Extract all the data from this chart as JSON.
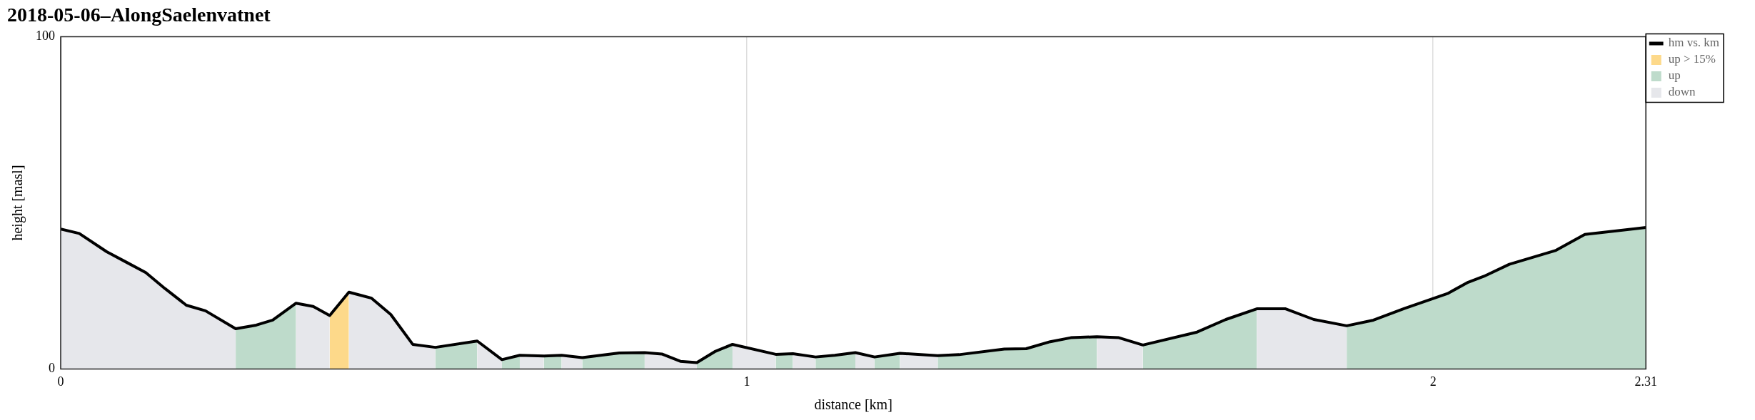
{
  "chart_data": {
    "type": "area",
    "title": "2018-05-06–AlongSaelenvatnet",
    "xlabel": "distance [km]",
    "ylabel": "height [masl]",
    "xlim": [
      0,
      2.31
    ],
    "xticks": [
      0,
      1,
      2,
      2.31
    ],
    "ylim": [
      0,
      100
    ],
    "yticks": [
      0,
      100
    ],
    "grid": "x",
    "legend": "top right",
    "series": [
      {
        "name": "hm vs. km",
        "type": "line",
        "color": "#000000",
        "x": [
          0,
          0.027,
          0.067,
          0.096,
          0.124,
          0.152,
          0.183,
          0.211,
          0.255,
          0.285,
          0.309,
          0.343,
          0.368,
          0.392,
          0.42,
          0.453,
          0.481,
          0.513,
          0.546,
          0.607,
          0.643,
          0.669,
          0.704,
          0.73,
          0.76,
          0.814,
          0.851,
          0.876,
          0.903,
          0.927,
          0.953,
          0.979,
          1.042,
          1.067,
          1.1,
          1.128,
          1.158,
          1.186,
          1.223,
          1.278,
          1.309,
          1.375,
          1.407,
          1.442,
          1.472,
          1.51,
          1.542,
          1.577,
          1.656,
          1.698,
          1.743,
          1.785,
          1.826,
          1.874,
          1.913,
          1.958,
          2.021,
          2.051,
          2.074,
          2.111,
          2.179,
          2.221,
          2.31
        ],
        "values": [
          42.1,
          40.8,
          35.3,
          32.1,
          29.0,
          24.2,
          19.2,
          17.5,
          12.1,
          13.2,
          14.7,
          19.8,
          18.8,
          16.1,
          23.1,
          21.3,
          16.4,
          7.4,
          6.5,
          8.4,
          2.8,
          4.1,
          3.9,
          4.1,
          3.4,
          4.8,
          4.9,
          4.5,
          2.3,
          1.9,
          5.2,
          7.4,
          4.4,
          4.6,
          3.6,
          4.1,
          4.9,
          3.6,
          4.7,
          4.0,
          4.3,
          6.0,
          6.1,
          8.2,
          9.4,
          9.7,
          9.4,
          7.2,
          11.1,
          14.9,
          18.1,
          18.1,
          14.9,
          13.0,
          14.7,
          18.2,
          22.7,
          26.1,
          27.9,
          31.5,
          35.7,
          40.5,
          42.6
        ]
      },
      {
        "name": "up > 15%",
        "type": "area",
        "color": "#fdd98a",
        "x": [
          0.392,
          0.42
        ],
        "values": [
          16.1,
          23.1
        ]
      },
      {
        "name": "up",
        "type": "area",
        "color": "#bedbcb",
        "x": [
          0.255,
          0.285,
          0.309,
          0.343,
          0.4,
          0.546,
          0.607,
          0.62,
          0.643,
          0.669,
          0.68,
          0.704,
          0.73,
          0.74,
          0.76,
          0.814,
          0.851,
          0.9,
          0.927,
          0.953,
          0.979,
          1.0,
          1.042,
          1.067,
          1.08,
          1.1,
          1.128,
          1.158,
          1.17,
          1.186,
          1.223,
          1.25,
          1.278,
          1.309,
          1.375,
          1.407,
          1.442,
          1.472,
          1.51,
          1.54,
          1.577,
          1.656,
          1.698,
          1.743,
          1.8,
          1.874,
          1.913,
          1.958,
          2.021,
          2.051,
          2.074,
          2.111,
          2.179,
          2.221,
          2.31
        ],
        "values": [
          12.1,
          13.2,
          14.7,
          19.8,
          null,
          6.5,
          8.4,
          null,
          2.8,
          4.1,
          null,
          3.9,
          4.1,
          null,
          3.4,
          4.8,
          4.9,
          null,
          1.9,
          5.2,
          7.4,
          null,
          4.4,
          4.6,
          null,
          3.6,
          4.1,
          4.9,
          null,
          3.6,
          4.7,
          null,
          4.0,
          4.3,
          6.0,
          6.1,
          8.2,
          9.4,
          9.7,
          null,
          7.2,
          11.1,
          14.9,
          18.1,
          null,
          13.0,
          14.7,
          18.2,
          22.7,
          26.1,
          27.9,
          31.5,
          35.7,
          40.5,
          42.6
        ]
      },
      {
        "name": "down",
        "type": "area",
        "color": "#e6e7eb",
        "x": [
          0,
          0.027,
          0.067,
          0.096,
          0.124,
          0.152,
          0.183,
          0.211,
          0.255,
          0.3,
          0.343,
          0.368,
          0.392,
          0.406,
          0.42,
          0.453,
          0.481,
          0.513,
          0.546,
          0.58,
          0.607,
          0.643,
          0.656,
          0.669,
          0.704,
          0.717,
          0.73,
          0.76,
          0.8,
          0.851,
          0.876,
          0.903,
          0.927,
          0.95,
          0.979,
          1.042,
          1.055,
          1.067,
          1.1,
          1.13,
          1.158,
          1.186,
          1.2,
          1.223,
          1.278,
          1.4,
          1.51,
          1.542,
          1.577,
          1.66,
          1.743,
          1.785,
          1.826,
          1.874
        ],
        "values": [
          42.1,
          40.8,
          35.3,
          32.1,
          29.0,
          24.2,
          19.2,
          17.5,
          12.1,
          null,
          19.8,
          18.8,
          16.1,
          null,
          23.1,
          21.3,
          16.4,
          7.4,
          6.5,
          null,
          8.4,
          2.8,
          null,
          4.1,
          3.9,
          null,
          4.1,
          3.4,
          null,
          4.9,
          4.5,
          2.3,
          1.9,
          null,
          7.4,
          4.4,
          null,
          4.6,
          3.6,
          null,
          4.9,
          3.6,
          null,
          4.7,
          4.0,
          null,
          9.7,
          9.4,
          7.2,
          null,
          18.1,
          18.1,
          14.9,
          13.0
        ]
      }
    ]
  }
}
